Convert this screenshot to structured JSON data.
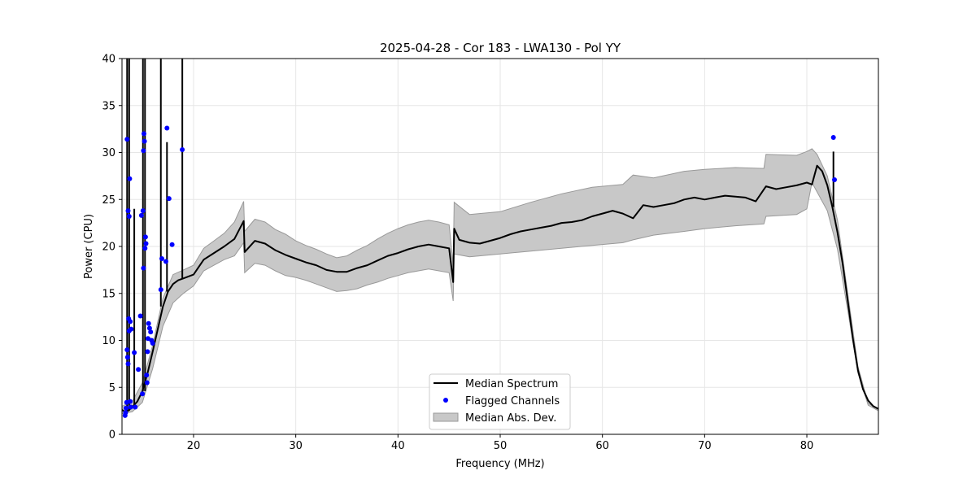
{
  "chart_data": {
    "type": "line",
    "title": "2025-04-28 - Cor 183 - LWA130 - Pol YY",
    "xlabel": "Frequency (MHz)",
    "ylabel": "Power (CPU)",
    "xlim": [
      13.0,
      87.0
    ],
    "ylim": [
      0,
      40
    ],
    "xticks": [
      20,
      30,
      40,
      50,
      60,
      70,
      80
    ],
    "yticks": [
      0,
      5,
      10,
      15,
      20,
      25,
      30,
      35,
      40
    ],
    "xtick_labels": [
      "20",
      "30",
      "40",
      "50",
      "60",
      "70",
      "80"
    ],
    "ytick_labels": [
      "0",
      "5",
      "10",
      "15",
      "20",
      "25",
      "30",
      "35",
      "40"
    ],
    "grid": true,
    "legend": {
      "position": "lower-center",
      "entries": [
        "Median Spectrum",
        "Flagged Channels",
        "Median Abs. Dev."
      ]
    },
    "colors": {
      "median": "#000000",
      "flagged": "#0000ff",
      "mad_fill": "#c8c8c8",
      "mad_edge": "#999999"
    },
    "series": [
      {
        "name": "Median Spectrum",
        "x": [
          13.0,
          13.3,
          13.6,
          14.0,
          14.5,
          15.0,
          15.5,
          16.0,
          16.5,
          17.0,
          17.5,
          18.0,
          18.5,
          19.0,
          20.0,
          21.0,
          22.0,
          23.0,
          24.0,
          24.9,
          25.0,
          26.0,
          27.0,
          28.0,
          29.0,
          30.0,
          31.0,
          32.0,
          33.0,
          34.0,
          35.0,
          36.0,
          37.0,
          38.0,
          39.0,
          40.0,
          41.0,
          42.0,
          43.0,
          44.0,
          45.0,
          45.4,
          45.5,
          46.0,
          47.0,
          48.0,
          49.0,
          50.0,
          51.0,
          52.0,
          53.0,
          54.0,
          55.0,
          56.0,
          57.0,
          58.0,
          59.0,
          60.0,
          61.0,
          62.0,
          63.0,
          64.0,
          65.0,
          66.0,
          67.0,
          68.0,
          69.0,
          70.0,
          71.0,
          72.0,
          73.0,
          74.0,
          75.0,
          76.0,
          77.0,
          78.0,
          79.0,
          80.0,
          80.5,
          81.0,
          81.5,
          82.0,
          82.5,
          83.0,
          83.5,
          84.0,
          84.5,
          85.0,
          85.5,
          86.0,
          86.5,
          87.0
        ],
        "y": [
          2.6,
          2.4,
          2.5,
          2.9,
          3.5,
          4.6,
          6.5,
          8.8,
          11.2,
          13.6,
          15.2,
          16.0,
          16.4,
          16.6,
          17.0,
          18.6,
          19.3,
          20.0,
          20.8,
          22.7,
          19.4,
          20.6,
          20.3,
          19.6,
          19.1,
          18.7,
          18.3,
          18.0,
          17.5,
          17.3,
          17.3,
          17.7,
          18.0,
          18.5,
          19.0,
          19.3,
          19.7,
          20.0,
          20.2,
          20.0,
          19.8,
          16.2,
          21.9,
          20.7,
          20.4,
          20.3,
          20.6,
          20.9,
          21.3,
          21.6,
          21.8,
          22.0,
          22.2,
          22.5,
          22.6,
          22.8,
          23.2,
          23.5,
          23.8,
          23.5,
          23.0,
          24.4,
          24.2,
          24.4,
          24.6,
          25.0,
          25.2,
          25.0,
          25.2,
          25.4,
          25.3,
          25.2,
          24.8,
          26.4,
          26.1,
          26.3,
          26.5,
          26.8,
          26.6,
          28.6,
          28.0,
          26.5,
          24.2,
          21.5,
          18.2,
          14.2,
          10.2,
          6.8,
          4.8,
          3.6,
          3.0,
          2.7
        ],
        "spikes": [
          [
            13.5,
            40.0
          ],
          [
            13.7,
            40.0
          ],
          [
            14.2,
            24.0
          ],
          [
            15.05,
            40.0
          ],
          [
            15.25,
            40.0
          ],
          [
            16.8,
            40.0
          ],
          [
            17.4,
            31.1
          ],
          [
            18.9,
            40.0
          ],
          [
            82.6,
            30.1
          ]
        ]
      },
      {
        "name": "Median Abs. Dev.",
        "x": [
          13.0,
          14.0,
          15.0,
          16.0,
          17.0,
          18.0,
          19.0,
          20.0,
          21.0,
          22.0,
          23.0,
          24.0,
          24.9,
          25.0,
          26.0,
          27.0,
          28.0,
          29.0,
          30.0,
          31.0,
          32.0,
          33.0,
          34.0,
          35.0,
          36.0,
          37.0,
          38.0,
          39.0,
          40.0,
          41.0,
          42.0,
          43.0,
          44.0,
          45.0,
          45.4,
          45.5,
          47.0,
          50.0,
          53.0,
          56.0,
          59.0,
          62.0,
          63.0,
          65.0,
          68.0,
          70.0,
          73.0,
          75.8,
          76.0,
          79.0,
          80.0,
          80.5,
          81.0,
          82.0,
          83.0,
          84.0,
          85.0,
          86.0,
          87.0
        ],
        "upper": [
          3.0,
          3.5,
          5.5,
          9.5,
          14.5,
          17.0,
          17.5,
          18.0,
          19.8,
          20.6,
          21.4,
          22.6,
          24.8,
          21.6,
          22.9,
          22.6,
          21.8,
          21.3,
          20.6,
          20.1,
          19.7,
          19.2,
          18.8,
          19.0,
          19.6,
          20.1,
          20.8,
          21.4,
          21.9,
          22.3,
          22.6,
          22.8,
          22.6,
          22.3,
          18.0,
          24.7,
          23.4,
          23.7,
          24.7,
          25.6,
          26.3,
          26.6,
          27.6,
          27.3,
          28.0,
          28.2,
          28.4,
          28.3,
          29.8,
          29.7,
          30.1,
          30.4,
          29.8,
          27.5,
          22.8,
          15.0,
          7.2,
          3.3,
          2.7
        ],
        "lower": [
          2.2,
          2.4,
          3.4,
          7.0,
          11.5,
          14.0,
          15.0,
          15.8,
          17.4,
          18.0,
          18.6,
          19.0,
          20.4,
          17.2,
          18.2,
          18.0,
          17.4,
          16.9,
          16.7,
          16.4,
          16.0,
          15.6,
          15.2,
          15.3,
          15.5,
          15.9,
          16.2,
          16.6,
          16.9,
          17.2,
          17.4,
          17.6,
          17.4,
          17.2,
          14.2,
          19.2,
          18.9,
          19.2,
          19.5,
          19.8,
          20.1,
          20.4,
          20.7,
          21.2,
          21.6,
          21.9,
          22.2,
          22.4,
          23.2,
          23.4,
          24.0,
          26.8,
          25.8,
          23.8,
          19.7,
          13.2,
          6.5,
          3.1,
          2.5
        ]
      }
    ],
    "flagged_channels": {
      "name": "Flagged Channels",
      "x": [
        13.3,
        13.35,
        13.4,
        13.45,
        13.5,
        13.5,
        13.55,
        13.6,
        13.6,
        13.65,
        13.7,
        13.7,
        13.75,
        13.8,
        13.8,
        13.85,
        13.9,
        14.2,
        14.3,
        14.6,
        14.8,
        14.9,
        15.0,
        15.05,
        15.1,
        15.1,
        15.15,
        15.2,
        15.25,
        15.3,
        15.35,
        15.4,
        15.45,
        15.5,
        15.55,
        15.6,
        15.7,
        15.8,
        15.9,
        16.0,
        16.8,
        16.9,
        17.3,
        17.4,
        17.6,
        17.9,
        18.9,
        82.6,
        82.7
      ],
      "y": [
        2.0,
        2.3,
        2.8,
        3.4,
        9.0,
        31.4,
        8.2,
        7.5,
        23.8,
        12.3,
        23.2,
        11.0,
        27.2,
        3.5,
        12.0,
        2.9,
        11.2,
        8.7,
        2.9,
        6.9,
        12.6,
        23.3,
        4.3,
        23.8,
        30.2,
        17.7,
        32.0,
        31.2,
        19.8,
        21.0,
        20.3,
        6.3,
        5.5,
        8.8,
        10.2,
        11.8,
        11.3,
        10.9,
        10.0,
        9.7,
        15.4,
        18.7,
        18.4,
        32.6,
        25.1,
        20.2,
        30.3,
        31.6,
        27.1
      ]
    }
  }
}
